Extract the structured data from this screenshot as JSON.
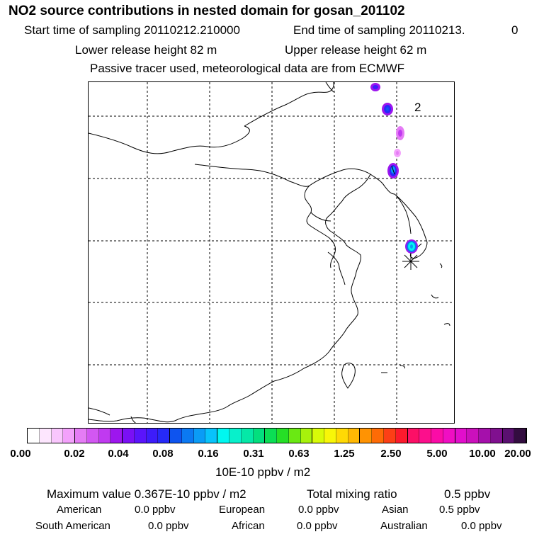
{
  "header": {
    "title": "NO2 source contributions in nested domain for gosan_201102",
    "start_label": "Start time of sampling 20110212.210000",
    "end_label": "End time of sampling 20110213.",
    "end_suffix": "0",
    "lower_release": "Lower release height   82 m",
    "upper_release": "Upper release height   62 m",
    "tracer_note": "Passive tracer used, meteorological data are from ECMWF"
  },
  "map": {
    "annotation": "2",
    "receptor_marker": "asterisk-icon"
  },
  "colorbar": {
    "ticks": [
      "0.00",
      "0.02",
      "0.04",
      "0.08",
      "0.16",
      "0.31",
      "0.63",
      "1.25",
      "2.50",
      "5.00",
      "10.00",
      "20.00"
    ],
    "unit": "10E-10 ppbv / m2",
    "colors": [
      "#ffffff",
      "#fde6fe",
      "#f9c6fd",
      "#f3a1fb",
      "#e57cf5",
      "#d257f2",
      "#c03af0",
      "#9d16ee",
      "#7a10f5",
      "#5a14fb",
      "#3d1cfa",
      "#262af8",
      "#0e54ef",
      "#0b79f2",
      "#0a9cf6",
      "#08c3fb",
      "#00f7f0",
      "#08f0cb",
      "#05e8a7",
      "#03df7e",
      "#0bde55",
      "#26df26",
      "#6ae913",
      "#a7f20c",
      "#d8fb08",
      "#f8f608",
      "#ffd905",
      "#ffb803",
      "#ff9303",
      "#fe6b06",
      "#fc3f16",
      "#fc1a2d",
      "#fc0f66",
      "#fc0f8c",
      "#fb0ca7",
      "#f00ec3",
      "#e20ecc",
      "#cb10bc",
      "#a510ab",
      "#80108f",
      "#5a1070",
      "#330d40"
    ]
  },
  "summary": {
    "max_label": "Maximum value  0.367E-10 ppbv / m2",
    "total_label": "Total mixing ratio",
    "total_value": "0.5 ppbv",
    "regions": [
      {
        "name": "American",
        "value": "0.0 ppbv"
      },
      {
        "name": "European",
        "value": "0.0 ppbv"
      },
      {
        "name": "Asian",
        "value": "0.5 ppbv"
      },
      {
        "name": "South American",
        "value": "0.0 ppbv"
      },
      {
        "name": "African",
        "value": "0.0 ppbv"
      },
      {
        "name": "Australian",
        "value": "0.0 ppbv"
      }
    ]
  }
}
